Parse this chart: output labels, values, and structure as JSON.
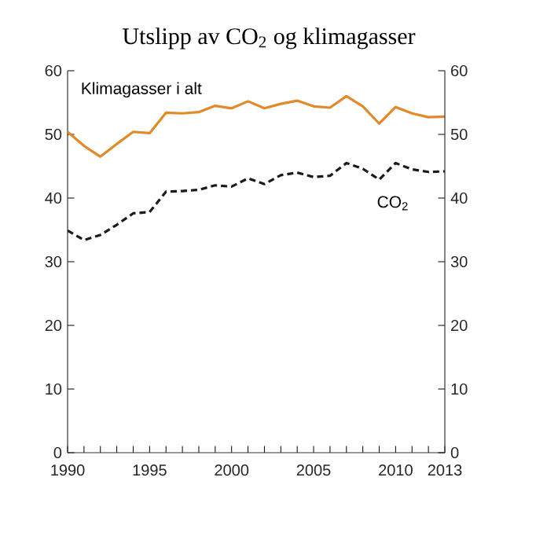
{
  "chart_data": {
    "type": "line",
    "title": "Utslipp av CO$_{2}$ og klimagasser",
    "x": [
      1990,
      1991,
      1992,
      1993,
      1994,
      1995,
      1996,
      1997,
      1998,
      1999,
      2000,
      2001,
      2002,
      2003,
      2004,
      2005,
      2006,
      2007,
      2008,
      2009,
      2010,
      2011,
      2012,
      2013
    ],
    "series": [
      {
        "name": "Klimagasser i alt",
        "color": "#e08a2c",
        "line_style": "solid",
        "values": [
          50.4,
          48.2,
          46.5,
          48.5,
          50.4,
          50.2,
          53.4,
          53.3,
          53.5,
          54.5,
          54.1,
          55.2,
          54.1,
          54.8,
          55.3,
          54.4,
          54.2,
          56.0,
          54.4,
          51.7,
          54.3,
          53.3,
          52.7,
          52.8
        ]
      },
      {
        "name": "CO$_{2}$",
        "color": "#1a1a1a",
        "line_style": "dashed",
        "values": [
          34.9,
          33.4,
          34.2,
          35.8,
          37.6,
          37.8,
          41.0,
          41.1,
          41.3,
          42.0,
          41.8,
          43.1,
          42.2,
          43.6,
          44.0,
          43.3,
          43.5,
          45.5,
          44.6,
          42.9,
          45.5,
          44.5,
          44.1,
          44.2
        ]
      }
    ],
    "xlim": [
      1990,
      2013
    ],
    "xticks": [
      1990,
      {
        "value": 1991,
        "label": null
      },
      {
        "value": 1992,
        "label": null
      },
      {
        "value": 1993,
        "label": null
      },
      {
        "value": 1994,
        "label": null
      },
      1995,
      {
        "value": 1996,
        "label": null
      },
      {
        "value": 1997,
        "label": null
      },
      {
        "value": 1998,
        "label": null
      },
      {
        "value": 1999,
        "label": null
      },
      2000,
      {
        "value": 2001,
        "label": null
      },
      {
        "value": 2002,
        "label": null
      },
      {
        "value": 2003,
        "label": null
      },
      {
        "value": 2004,
        "label": null
      },
      2005,
      {
        "value": 2006,
        "label": null
      },
      {
        "value": 2007,
        "label": null
      },
      {
        "value": 2008,
        "label": null
      },
      {
        "value": 2009,
        "label": null
      },
      2010,
      {
        "value": 2011,
        "label": null
      },
      {
        "value": 2012,
        "label": null
      },
      2013
    ],
    "ylim": [
      0,
      60
    ],
    "yticks": [
      0,
      10,
      20,
      30,
      40,
      50,
      60
    ],
    "y2lim": [
      0,
      60
    ],
    "y2ticks": [
      0,
      10,
      20,
      30,
      40,
      50,
      60
    ],
    "grid": false,
    "legend": false,
    "marker": "none"
  }
}
